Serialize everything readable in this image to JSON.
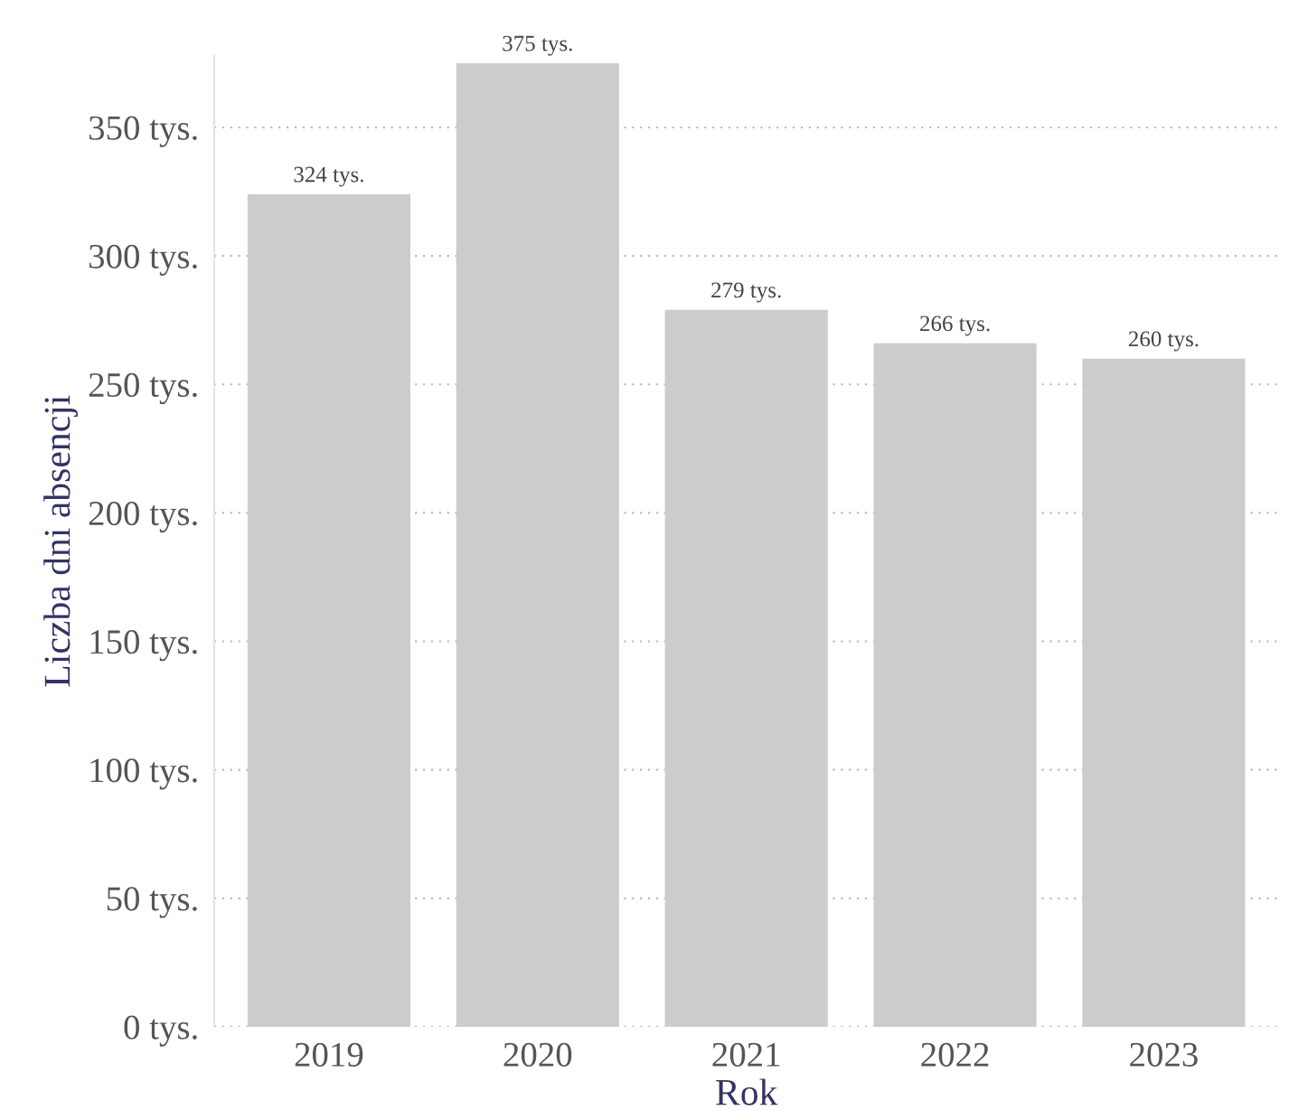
{
  "chart_data": {
    "type": "bar",
    "xlabel": "Rok",
    "ylabel": "Liczba dni absencji",
    "categories": [
      "2019",
      "2020",
      "2021",
      "2022",
      "2023"
    ],
    "values": [
      324,
      375,
      279,
      266,
      260
    ],
    "color": "#cccccc",
    "value_labels": [
      "324 tys.",
      "375 tys.",
      "279 tys.",
      "266 tys.",
      "260 tys."
    ],
    "ylim": [
      0,
      378
    ],
    "yticks": [
      {
        "value": 0,
        "label": "0 tys."
      },
      {
        "value": 50,
        "label": "50 tys."
      },
      {
        "value": 100,
        "label": "100 tys."
      },
      {
        "value": 150,
        "label": "150 tys."
      },
      {
        "value": 200,
        "label": "200 tys."
      },
      {
        "value": 250,
        "label": "250 tys."
      },
      {
        "value": 300,
        "label": "300 tys."
      },
      {
        "value": 350,
        "label": "350 tys."
      }
    ],
    "grid": "y"
  }
}
